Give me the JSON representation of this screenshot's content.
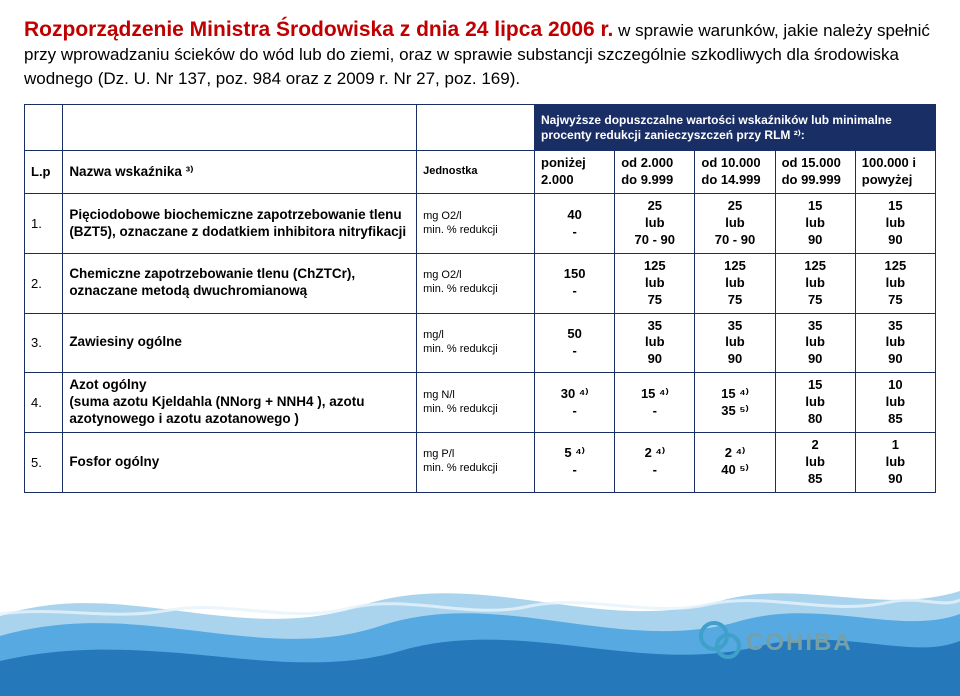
{
  "title_lead": "Rozporządzenie Ministra Środowiska z dnia 24 lipca 2006 r.",
  "title_body": " w sprawie warunków, jakie należy spełnić przy wprowadzaniu ścieków do wód lub do ziemi, oraz w sprawie substancji szczególnie szkodliwych dla środowiska wodnego (Dz. U. Nr 137, poz. 984 oraz z 2009 r. Nr 27, poz. 169).",
  "banner": "Najwyższe dopuszczalne wartości wskaźników lub minimalne procenty redukcji zanieczyszczeń przy RLM ²⁾:",
  "head": {
    "lp": "L.p",
    "name": "Nazwa wskaźnika ³⁾",
    "unit": "Jednostka",
    "c1": "poniżej 2.000",
    "c2": "od 2.000 do 9.999",
    "c3": "od 10.000 do 14.999",
    "c4": "od 15.000 do 99.999",
    "c5": "100.000 i powyżej"
  },
  "rows": [
    {
      "n": "1.",
      "name": "Pięciodobowe biochemiczne zapotrzebowanie tlenu (BZT5), oznaczane z dodatkiem inhibitora nitryfikacji",
      "unit": "mg O2/l\nmin. % redukcji",
      "v": [
        "40\n-",
        "25\nlub\n70 - 90",
        "25\nlub\n70 - 90",
        "15\nlub\n90",
        "15\nlub\n90"
      ]
    },
    {
      "n": "2.",
      "name": "Chemiczne zapotrzebowanie tlenu (ChZTCr), oznaczane metodą dwuchromianową",
      "unit": "mg O2/l\nmin. % redukcji",
      "v": [
        "150\n-",
        "125\nlub\n75",
        "125\nlub\n75",
        "125\nlub\n75",
        "125\nlub\n75"
      ]
    },
    {
      "n": "3.",
      "name": "Zawiesiny ogólne",
      "unit": "mg/l\nmin. % redukcji",
      "v": [
        "50\n-",
        "35\nlub\n90",
        "35\nlub\n90",
        "35\nlub\n90",
        "35\nlub\n90"
      ]
    },
    {
      "n": "4.",
      "name": "Azot ogólny\n(suma azotu Kjeldahla (NNorg + NNH4 ), azotu azotynowego i azotu azotanowego )",
      "unit": "mg N/l\nmin. % redukcji",
      "v": [
        "30 ⁴⁾\n-",
        "15 ⁴⁾\n-",
        "15 ⁴⁾\n35 ⁵⁾",
        "15\nlub\n80",
        "10\nlub\n85"
      ]
    },
    {
      "n": "5.",
      "name": "Fosfor ogólny",
      "unit": "mg P/l\nmin. % redukcji",
      "v": [
        "5 ⁴⁾\n-",
        "2 ⁴⁾\n-",
        "2 ⁴⁾\n40 ⁵⁾",
        "2\nlub\n85",
        "1\nlub\n90"
      ]
    }
  ],
  "logo_text": "COHIBA",
  "colors": {
    "title": "#c00000",
    "border": "#1a2e66",
    "banner_bg": "#1a2e66",
    "wave_dark": "#0b5fa5",
    "wave_mid": "#3b9bdc",
    "wave_light": "#aad4ee",
    "wave_foam": "#e6f2fb",
    "logo_border": "#3fa0c9",
    "logo_text": "#76a0a8"
  }
}
